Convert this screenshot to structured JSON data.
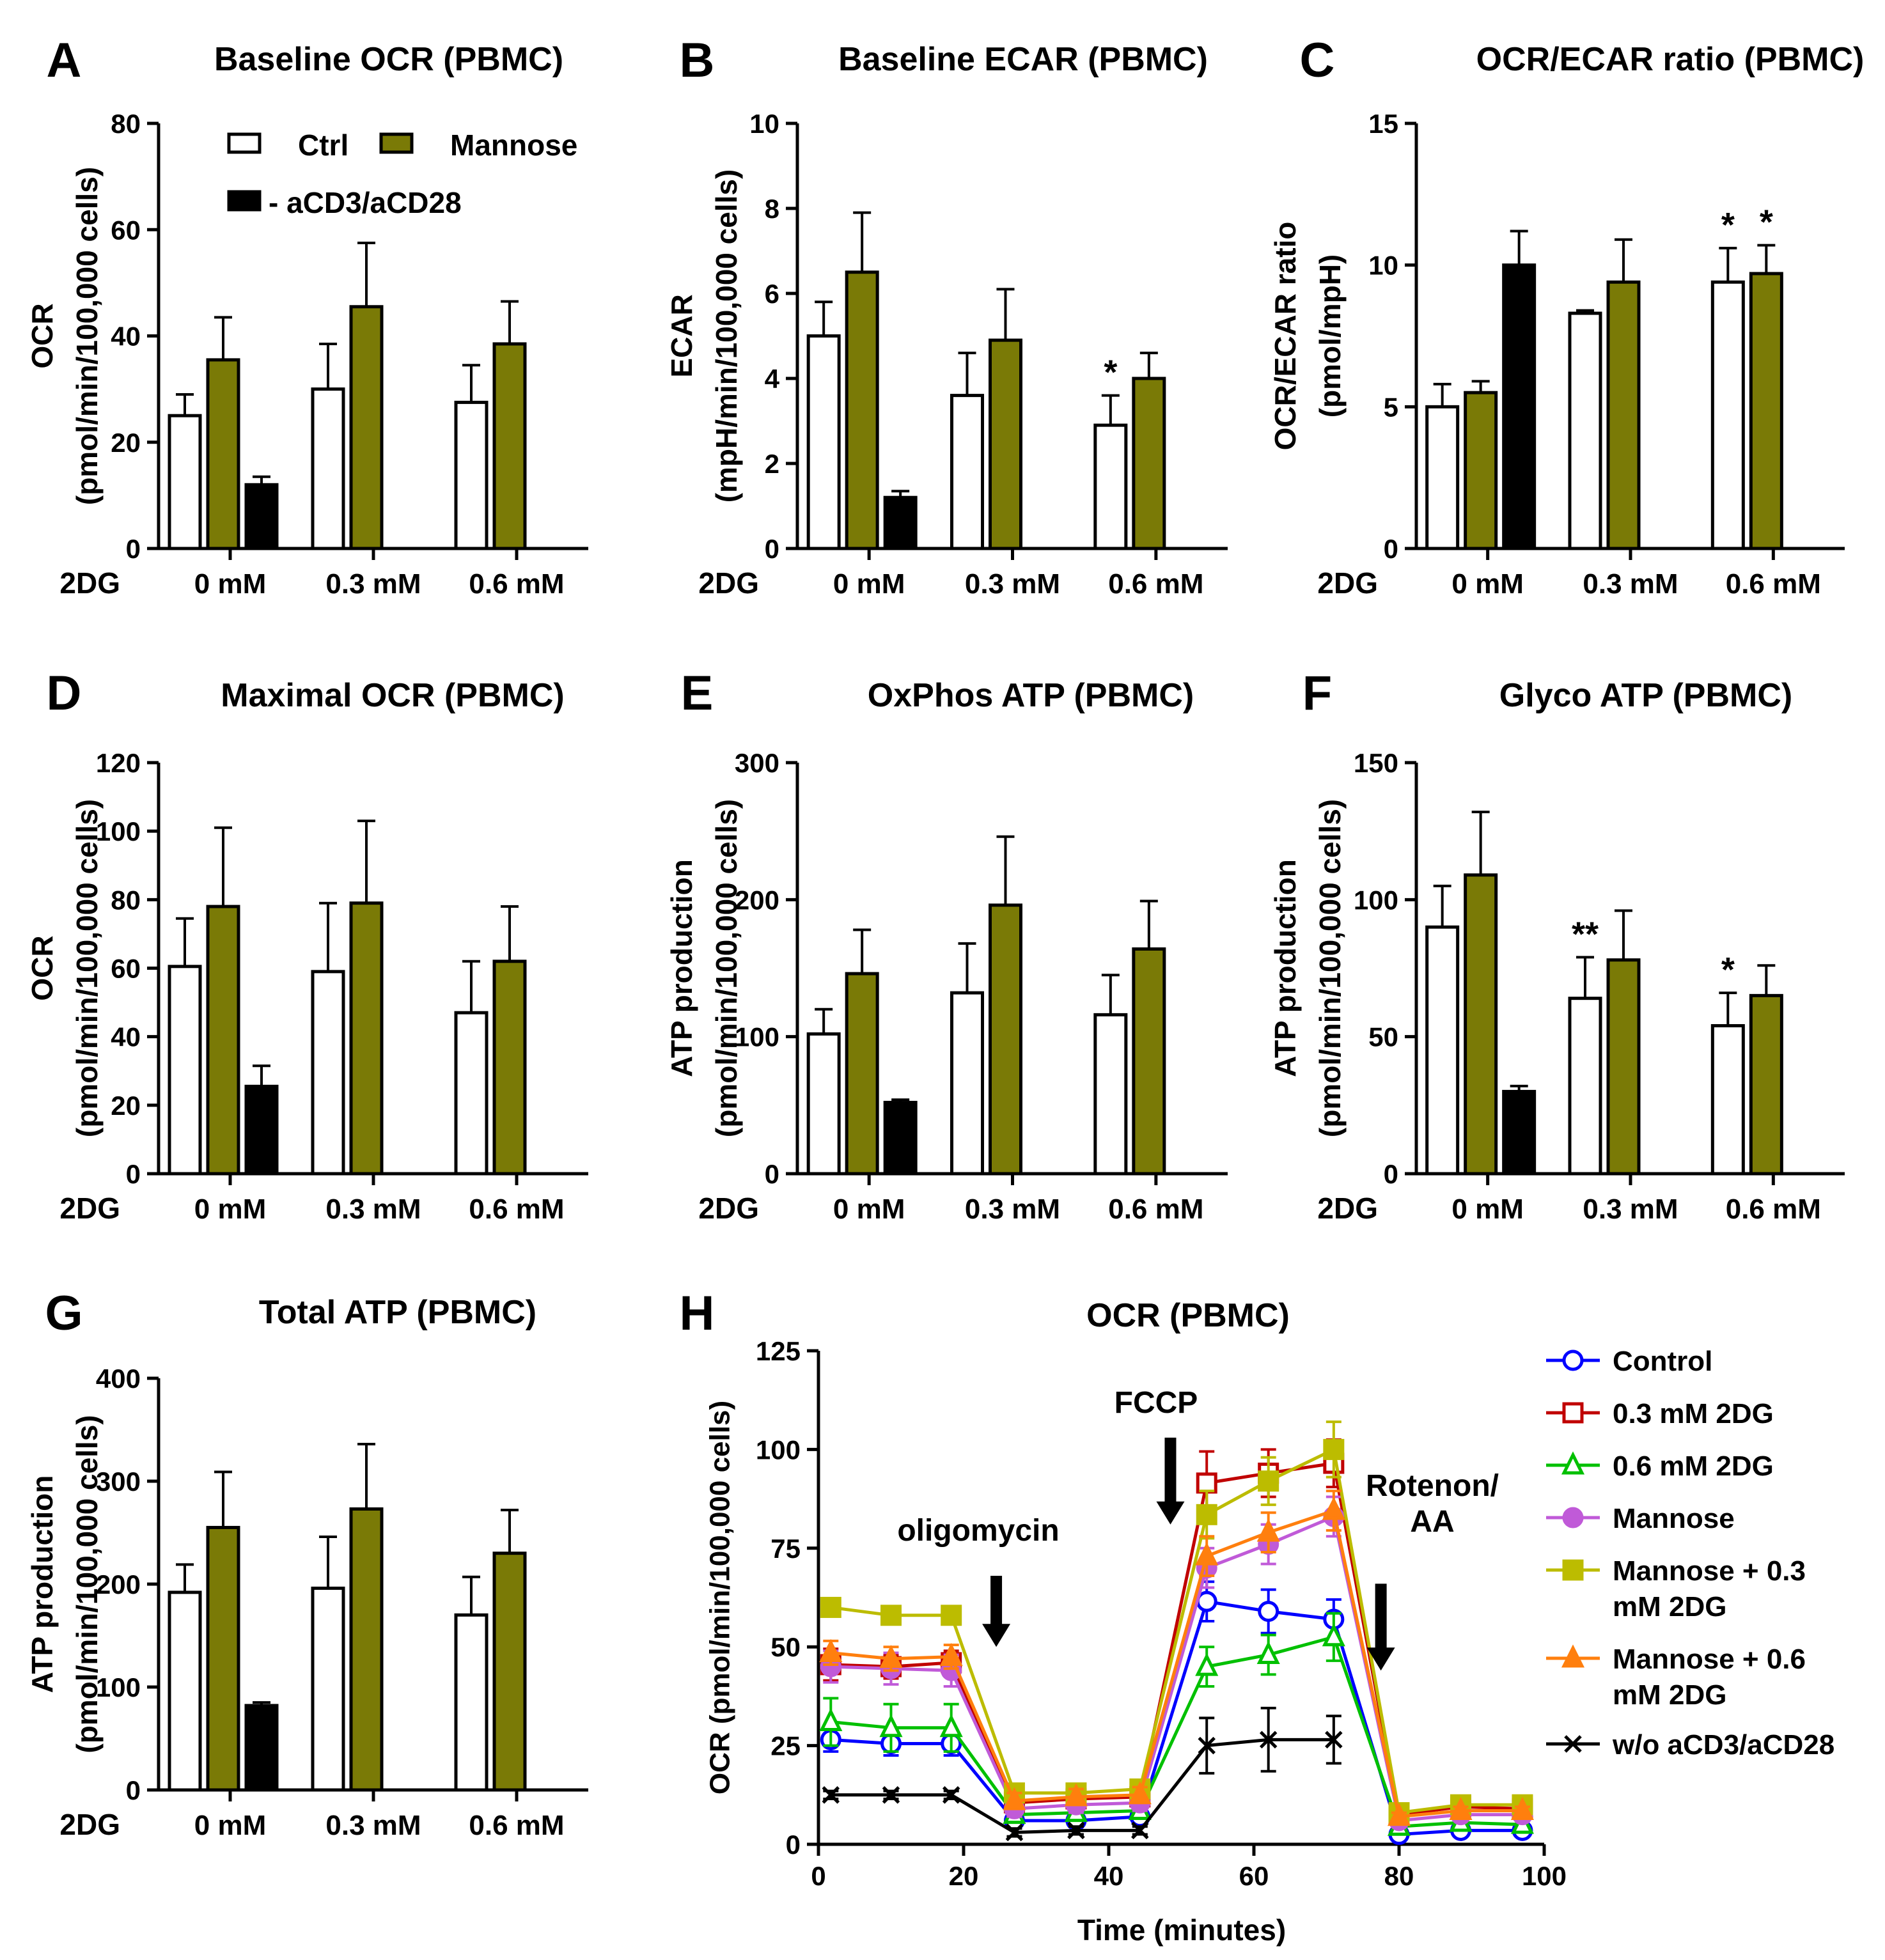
{
  "colors": {
    "ctrl": "#ffffff",
    "mannose": "#7a7a06",
    "anti": "#000000",
    "axis": "#000000"
  },
  "legend": {
    "ctrl": "Ctrl",
    "mannose": "Mannose",
    "anti": "- aCD3/aCD28"
  },
  "chart_data": [
    {
      "id": "A",
      "type": "bar",
      "panel_label": "A",
      "title": "Baseline OCR (PBMC)",
      "ylabel": [
        "OCR",
        "(pmol/min/100,000 cells)"
      ],
      "group_prefix": "2DG",
      "categories": [
        "0 mM",
        "0.3 mM",
        "0.6 mM"
      ],
      "ylim": [
        0,
        80
      ],
      "yticks": [
        0,
        20,
        40,
        60,
        80
      ],
      "series": [
        {
          "name": "Ctrl",
          "key": "ctrl",
          "values": [
            25,
            30,
            27.5
          ],
          "errors": [
            4,
            8.5,
            7
          ]
        },
        {
          "name": "Mannose",
          "key": "mannose",
          "values": [
            35.5,
            45.5,
            38.5
          ],
          "errors": [
            8,
            12,
            8
          ]
        },
        {
          "name": "- aCD3/aCD28",
          "key": "anti",
          "values": [
            12,
            null,
            null
          ],
          "errors": [
            1.5,
            null,
            null
          ]
        }
      ],
      "annotations": []
    },
    {
      "id": "B",
      "type": "bar",
      "panel_label": "B",
      "title": "Baseline ECAR (PBMC)",
      "ylabel": [
        "ECAR",
        "(mpH/min/100,000 cells)"
      ],
      "group_prefix": "2DG",
      "categories": [
        "0 mM",
        "0.3 mM",
        "0.6 mM"
      ],
      "ylim": [
        0,
        10
      ],
      "yticks": [
        0,
        2,
        4,
        6,
        8,
        10
      ],
      "series": [
        {
          "name": "Ctrl",
          "key": "ctrl",
          "values": [
            5,
            3.6,
            2.9
          ],
          "errors": [
            0.8,
            1.0,
            0.7
          ]
        },
        {
          "name": "Mannose",
          "key": "mannose",
          "values": [
            6.5,
            4.9,
            4.0
          ],
          "errors": [
            1.4,
            1.2,
            0.6
          ]
        },
        {
          "name": "- aCD3/aCD28",
          "key": "anti",
          "values": [
            1.2,
            null,
            null
          ],
          "errors": [
            0.15,
            null,
            null
          ]
        }
      ],
      "annotations": [
        {
          "group": 2,
          "series": 0,
          "text": "*"
        }
      ]
    },
    {
      "id": "C",
      "type": "bar",
      "panel_label": "C",
      "title": "OCR/ECAR ratio (PBMC)",
      "ylabel": [
        "OCR/ECAR ratio",
        "(pmol/mpH)"
      ],
      "group_prefix": "2DG",
      "categories": [
        "0 mM",
        "0.3 mM",
        "0.6 mM"
      ],
      "ylim": [
        0,
        15
      ],
      "yticks": [
        0,
        5,
        10,
        15
      ],
      "series": [
        {
          "name": "Ctrl",
          "key": "ctrl",
          "values": [
            5.0,
            8.3,
            9.4
          ],
          "errors": [
            0.8,
            0.1,
            1.2
          ]
        },
        {
          "name": "Mannose",
          "key": "mannose",
          "values": [
            5.5,
            9.4,
            9.7
          ],
          "errors": [
            0.4,
            1.5,
            1.0
          ]
        },
        {
          "name": "- aCD3/aCD28",
          "key": "anti",
          "values": [
            10.0,
            null,
            null
          ],
          "errors": [
            1.2,
            null,
            null
          ]
        }
      ],
      "annotations": [
        {
          "group": 2,
          "series": 0,
          "text": "*"
        },
        {
          "group": 2,
          "series": 1,
          "text": "*"
        }
      ]
    },
    {
      "id": "D",
      "type": "bar",
      "panel_label": "D",
      "title": "Maximal OCR (PBMC)",
      "ylabel": [
        "OCR",
        "(pmol/min/100,000 cells)"
      ],
      "group_prefix": "2DG",
      "categories": [
        "0 mM",
        "0.3 mM",
        "0.6 mM"
      ],
      "ylim": [
        0,
        120
      ],
      "yticks": [
        0,
        20,
        40,
        60,
        80,
        100,
        120
      ],
      "series": [
        {
          "name": "Ctrl",
          "key": "ctrl",
          "values": [
            60.5,
            59,
            47
          ],
          "errors": [
            14,
            20,
            15
          ]
        },
        {
          "name": "Mannose",
          "key": "mannose",
          "values": [
            78,
            79,
            62
          ],
          "errors": [
            23,
            24,
            16
          ]
        },
        {
          "name": "- aCD3/aCD28",
          "key": "anti",
          "values": [
            25.5,
            null,
            null
          ],
          "errors": [
            6,
            null,
            null
          ]
        }
      ],
      "annotations": []
    },
    {
      "id": "E",
      "type": "bar",
      "panel_label": "E",
      "title": "OxPhos ATP (PBMC)",
      "ylabel": [
        "ATP production",
        "(pmol/min/100,000 cells)"
      ],
      "group_prefix": "2DG",
      "categories": [
        "0 mM",
        "0.3 mM",
        "0.6 mM"
      ],
      "ylim": [
        0,
        300
      ],
      "yticks": [
        0,
        100,
        200,
        300
      ],
      "series": [
        {
          "name": "Ctrl",
          "key": "ctrl",
          "values": [
            102,
            132,
            116
          ],
          "errors": [
            18,
            36,
            29
          ]
        },
        {
          "name": "Mannose",
          "key": "mannose",
          "values": [
            146,
            196,
            164
          ],
          "errors": [
            32,
            50,
            35
          ]
        },
        {
          "name": "- aCD3/aCD28",
          "key": "anti",
          "values": [
            52,
            null,
            null
          ],
          "errors": [
            2,
            null,
            null
          ]
        }
      ],
      "annotations": []
    },
    {
      "id": "F",
      "type": "bar",
      "panel_label": "F",
      "title": "Glyco ATP (PBMC)",
      "ylabel": [
        "ATP production",
        "(pmol/min/100,000 cells)"
      ],
      "group_prefix": "2DG",
      "categories": [
        "0 mM",
        "0.3 mM",
        "0.6 mM"
      ],
      "ylim": [
        0,
        150
      ],
      "yticks": [
        0,
        50,
        100,
        150
      ],
      "series": [
        {
          "name": "Ctrl",
          "key": "ctrl",
          "values": [
            90,
            64,
            54
          ],
          "errors": [
            15,
            15,
            12
          ]
        },
        {
          "name": "Mannose",
          "key": "mannose",
          "values": [
            109,
            78,
            65
          ],
          "errors": [
            23,
            18,
            11
          ]
        },
        {
          "name": "- aCD3/aCD28",
          "key": "anti",
          "values": [
            30,
            null,
            null
          ],
          "errors": [
            2,
            null,
            null
          ]
        }
      ],
      "annotations": [
        {
          "group": 1,
          "series": 0,
          "text": "**"
        },
        {
          "group": 2,
          "series": 0,
          "text": "*"
        }
      ]
    },
    {
      "id": "G",
      "type": "bar",
      "panel_label": "G",
      "title": "Total ATP (PBMC)",
      "ylabel": [
        "ATP production",
        "(pmol/min/100,000 cells)"
      ],
      "group_prefix": "2DG",
      "categories": [
        "0 mM",
        "0.3 mM",
        "0.6 mM"
      ],
      "ylim": [
        0,
        400
      ],
      "yticks": [
        0,
        100,
        200,
        300,
        400
      ],
      "series": [
        {
          "name": "Ctrl",
          "key": "ctrl",
          "values": [
            192,
            196,
            170
          ],
          "errors": [
            27,
            50,
            37
          ]
        },
        {
          "name": "Mannose",
          "key": "mannose",
          "values": [
            255,
            273,
            230
          ],
          "errors": [
            54,
            63,
            42
          ]
        },
        {
          "name": "- aCD3/aCD28",
          "key": "anti",
          "values": [
            82,
            null,
            null
          ],
          "errors": [
            3,
            null,
            null
          ]
        }
      ],
      "annotations": []
    },
    {
      "id": "H",
      "type": "line",
      "panel_label": "H",
      "title": "OCR (PBMC)",
      "xlabel": "Time (minutes)",
      "ylabel": "OCR (pmol/min/100,000 cells)",
      "xlim": [
        0,
        100
      ],
      "ylim": [
        0,
        125
      ],
      "xticks": [
        0,
        20,
        40,
        60,
        80,
        100
      ],
      "yticks": [
        0,
        25,
        50,
        75,
        100,
        125
      ],
      "x": [
        1.7,
        10.0,
        18.3,
        27.0,
        35.5,
        44.3,
        53.5,
        62.0,
        71.0,
        80.0,
        88.5,
        97.0
      ],
      "injections": [
        {
          "label": "oligomycin",
          "x": 24.5,
          "y_tip": 50,
          "y_top": 68
        },
        {
          "label": "FCCP",
          "x": 48.5,
          "y_tip": 81,
          "y_top": 103
        },
        {
          "label": "Rotenon/AA",
          "x": 77.5,
          "y_tip": 44,
          "y_top": 66
        }
      ],
      "series": [
        {
          "name": "Control",
          "color": "#0000ff",
          "marker": "circle-open",
          "values": [
            26.5,
            25.5,
            25.5,
            6,
            6,
            7,
            61.5,
            59,
            57,
            2.5,
            3.5,
            3.5
          ],
          "errors": [
            3,
            3,
            3,
            1.5,
            1.5,
            1.5,
            5,
            5.5,
            5,
            0.5,
            0.5,
            0.5
          ]
        },
        {
          "name": "0.3 mM 2DG",
          "color": "#c00000",
          "marker": "square-open",
          "values": [
            45.5,
            45,
            46,
            10.5,
            11.5,
            12,
            91.5,
            94,
            96.5,
            7.5,
            9.5,
            9
          ],
          "errors": [
            4,
            3,
            3,
            2,
            2,
            2,
            8,
            6,
            6,
            1,
            1,
            1
          ]
        },
        {
          "name": "0.6 mM 2DG",
          "color": "#00c000",
          "marker": "triangle-open",
          "values": [
            31,
            29.5,
            29.5,
            7.5,
            8,
            8.5,
            45,
            48,
            52.5,
            4.5,
            5.5,
            5
          ],
          "errors": [
            6,
            6,
            6,
            2,
            2,
            2,
            5,
            5,
            6,
            1,
            1,
            1
          ]
        },
        {
          "name": "Mannose",
          "color": "#c05ad8",
          "marker": "circle",
          "values": [
            45,
            44.5,
            44,
            9,
            10,
            10.5,
            70,
            76,
            83,
            6,
            7.5,
            7.5
          ],
          "errors": [
            4,
            4,
            4,
            2,
            2,
            2,
            5,
            5,
            5,
            1,
            1,
            1
          ]
        },
        {
          "name": "Mannose + 0.3 mM 2DG",
          "color": "#bcbc00",
          "marker": "square",
          "values": [
            60,
            58,
            58,
            13,
            13,
            14,
            83.5,
            92,
            100,
            8,
            10,
            10
          ],
          "errors": [
            2,
            2,
            2,
            2,
            2,
            2,
            6,
            6,
            7,
            1,
            1,
            1
          ]
        },
        {
          "name": "Mannose + 0.6 mM 2DG",
          "color": "#ff7f0e",
          "marker": "triangle",
          "values": [
            48.5,
            47,
            47.5,
            11,
            12,
            12.5,
            73,
            79,
            84.5,
            7,
            8.5,
            8.5
          ],
          "errors": [
            3,
            3,
            3,
            2,
            2,
            2,
            5,
            5,
            5,
            1,
            1,
            1
          ]
        },
        {
          "name": "w/o aCD3/aCD28",
          "color": "#000000",
          "marker": "x",
          "values": [
            12.5,
            12.5,
            12.5,
            3,
            3.5,
            3.5,
            25,
            26.5,
            26.5,
            null,
            null,
            null
          ],
          "errors": [
            1,
            1,
            1,
            1,
            1,
            1,
            7,
            8,
            6,
            null,
            null,
            null
          ]
        }
      ],
      "legend": [
        {
          "series": 0,
          "lines": [
            "Control"
          ]
        },
        {
          "series": 1,
          "lines": [
            "0.3 mM 2DG"
          ]
        },
        {
          "series": 2,
          "lines": [
            "0.6 mM 2DG"
          ]
        },
        {
          "series": 3,
          "lines": [
            "Mannose"
          ]
        },
        {
          "series": 4,
          "lines": [
            "Mannose + 0.3",
            "mM 2DG"
          ]
        },
        {
          "series": 5,
          "lines": [
            "Mannose + 0.6",
            "mM 2DG"
          ]
        },
        {
          "series": 6,
          "lines": [
            "w/o aCD3/aCD28"
          ]
        }
      ]
    }
  ]
}
